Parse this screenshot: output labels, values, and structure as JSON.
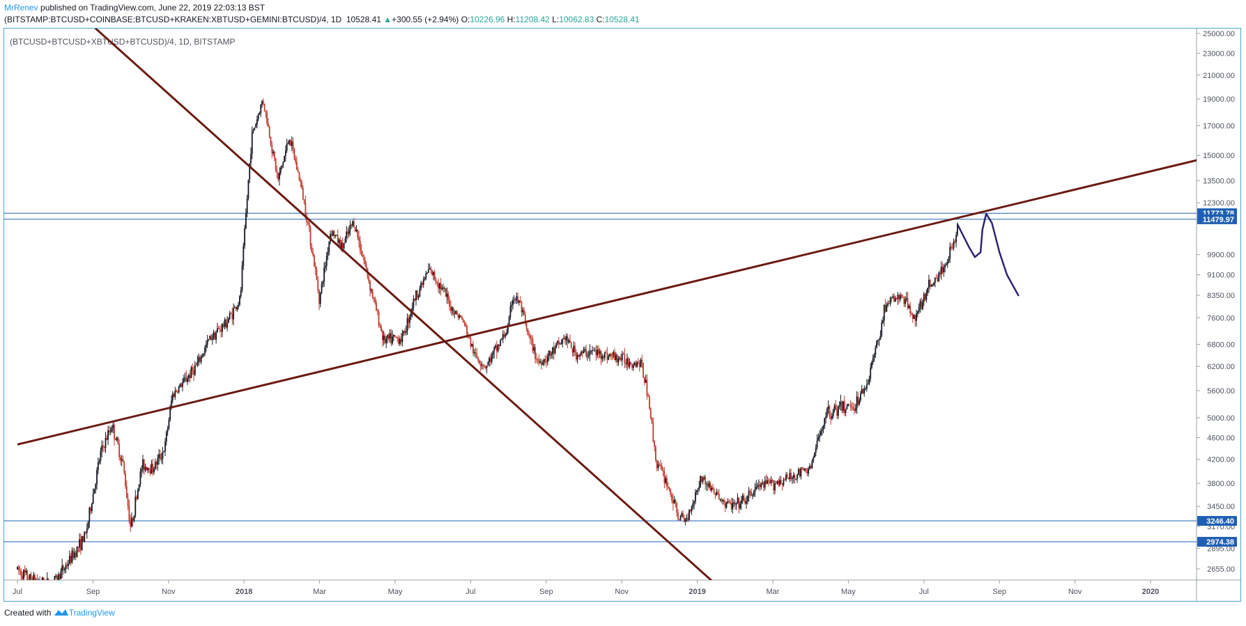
{
  "header": {
    "author": "MrRenev",
    "published_text": "published on TradingView.com, June 22, 2019 22:03:13 BST",
    "symbol": "(BITSTAMP:BTCUSD+COINBASE:BTCUSD+KRAKEN:XBTUSD+GEMINI:BTCUSD)/4, 1D",
    "last": "10528.41",
    "up_arrow": "▲",
    "change": "+300.55 (+2.94%)",
    "o_label": "O:",
    "o_value": "10226.96",
    "h_label": "H:",
    "h_value": "11208.42",
    "l_label": "L:",
    "l_value": "10062.83",
    "c_label": "C:",
    "c_value": "10528.41"
  },
  "pane_label": "(BTCUSD+BTCUSD+XBTUSD+BTCUSD)/4, 1D, BITSTAMP",
  "footer": {
    "created": "Created with",
    "brand": "TradingView"
  },
  "chart_data": {
    "type": "candlestick",
    "y_scale": "log",
    "ylim": [
      2450,
      26000
    ],
    "price_ticks": [
      "25000.00",
      "23000.00",
      "21000.00",
      "19000.00",
      "17000.00",
      "15000.00",
      "13500.00",
      "12300.00",
      "9900.00",
      "9100.00",
      "8350.00",
      "7600.00",
      "6800.00",
      "6200.00",
      "5600.00",
      "5000.00",
      "4600.00",
      "4200.00",
      "3800.00",
      "3450.00",
      "3170.00",
      "2895.00",
      "2655.00"
    ],
    "time_ticks": [
      "Jul",
      "Sep",
      "Nov",
      "2018",
      "Mar",
      "May",
      "Jul",
      "Sep",
      "Nov",
      "2019",
      "Mar",
      "May",
      "Jul",
      "Sep",
      "Nov",
      "2020"
    ],
    "time_tick_months": [
      0,
      2,
      4,
      6,
      8,
      10,
      12,
      14,
      16,
      18,
      20,
      22,
      24,
      26,
      28,
      30
    ],
    "bold_ticks": [
      "2018",
      "2019",
      "2020"
    ],
    "price_path": [
      [
        0,
        2650
      ],
      [
        0.3,
        2550
      ],
      [
        0.9,
        2480
      ],
      [
        1.3,
        2700
      ],
      [
        1.8,
        3050
      ],
      [
        2.2,
        4300
      ],
      [
        2.5,
        4850
      ],
      [
        2.8,
        4100
      ],
      [
        3.0,
        3150
      ],
      [
        3.3,
        4100
      ],
      [
        3.6,
        4050
      ],
      [
        3.9,
        4400
      ],
      [
        4.1,
        5500
      ],
      [
        4.4,
        5800
      ],
      [
        4.8,
        6300
      ],
      [
        5.1,
        7000
      ],
      [
        5.5,
        7400
      ],
      [
        5.9,
        8200
      ],
      [
        6.0,
        10500
      ],
      [
        6.2,
        16200
      ],
      [
        6.5,
        19000
      ],
      [
        6.9,
        13500
      ],
      [
        7.2,
        16200
      ],
      [
        7.5,
        13300
      ],
      [
        7.7,
        11200
      ],
      [
        8.0,
        8200
      ],
      [
        8.3,
        11000
      ],
      [
        8.6,
        10200
      ],
      [
        8.9,
        11400
      ],
      [
        9.2,
        9500
      ],
      [
        9.7,
        6900
      ],
      [
        10.2,
        7000
      ],
      [
        10.5,
        8200
      ],
      [
        10.9,
        9300
      ],
      [
        11.2,
        8700
      ],
      [
        11.5,
        7900
      ],
      [
        11.8,
        7500
      ],
      [
        12.1,
        6500
      ],
      [
        12.4,
        6200
      ],
      [
        12.7,
        6700
      ],
      [
        13.0,
        7300
      ],
      [
        13.1,
        8300
      ],
      [
        13.3,
        8100
      ],
      [
        13.5,
        7100
      ],
      [
        13.8,
        6300
      ],
      [
        14.1,
        6500
      ],
      [
        14.5,
        7000
      ],
      [
        14.8,
        6500
      ],
      [
        15.2,
        6600
      ],
      [
        15.6,
        6500
      ],
      [
        16.0,
        6400
      ],
      [
        16.3,
        6300
      ],
      [
        16.5,
        6300
      ],
      [
        16.7,
        5500
      ],
      [
        16.9,
        4200
      ],
      [
        17.2,
        3800
      ],
      [
        17.5,
        3300
      ],
      [
        17.7,
        3250
      ],
      [
        17.9,
        3550
      ],
      [
        18.1,
        3900
      ],
      [
        18.4,
        3700
      ],
      [
        18.7,
        3500
      ],
      [
        19.0,
        3450
      ],
      [
        19.3,
        3550
      ],
      [
        19.6,
        3750
      ],
      [
        20.0,
        3800
      ],
      [
        20.5,
        3900
      ],
      [
        21.0,
        4050
      ],
      [
        21.4,
        5100
      ],
      [
        21.8,
        5200
      ],
      [
        22.2,
        5300
      ],
      [
        22.5,
        5800
      ],
      [
        22.8,
        7000
      ],
      [
        23.0,
        8100
      ],
      [
        23.4,
        8300
      ],
      [
        23.8,
        7600
      ],
      [
        24.1,
        8600
      ],
      [
        24.5,
        9300
      ],
      [
        24.8,
        10500
      ],
      [
        24.9,
        11200
      ]
    ],
    "horizontal_levels": [
      {
        "value": 11773.78,
        "label": "11773.78"
      },
      {
        "value": 11479.97,
        "label": "11479.97"
      },
      {
        "value": 3246.4,
        "label": "3246.40"
      },
      {
        "value": 2974.38,
        "label": "2974.38"
      }
    ],
    "trendlines": [
      {
        "name": "descending",
        "from": [
          1.94,
          26000
        ],
        "to": [
          18.6,
          2450
        ],
        "color": "#6b1a11"
      },
      {
        "name": "ascending",
        "from": [
          0,
          4470
        ],
        "to": [
          31.4,
          14800
        ],
        "color": "#6b1a11"
      }
    ],
    "projection_path": [
      [
        24.9,
        11200
      ],
      [
        25.2,
        10200
      ],
      [
        25.35,
        9800
      ],
      [
        25.5,
        10000
      ],
      [
        25.55,
        11000
      ],
      [
        25.65,
        11750
      ],
      [
        25.8,
        11300
      ],
      [
        26.0,
        10000
      ],
      [
        26.2,
        9100
      ],
      [
        26.5,
        8350
      ]
    ],
    "colors": {
      "up": "#131722",
      "down": "#c0392b",
      "trendline": "#6b1a11",
      "level": "#1e5fb4",
      "projection": "#2e2473",
      "axis_text": "#4c525e"
    }
  }
}
